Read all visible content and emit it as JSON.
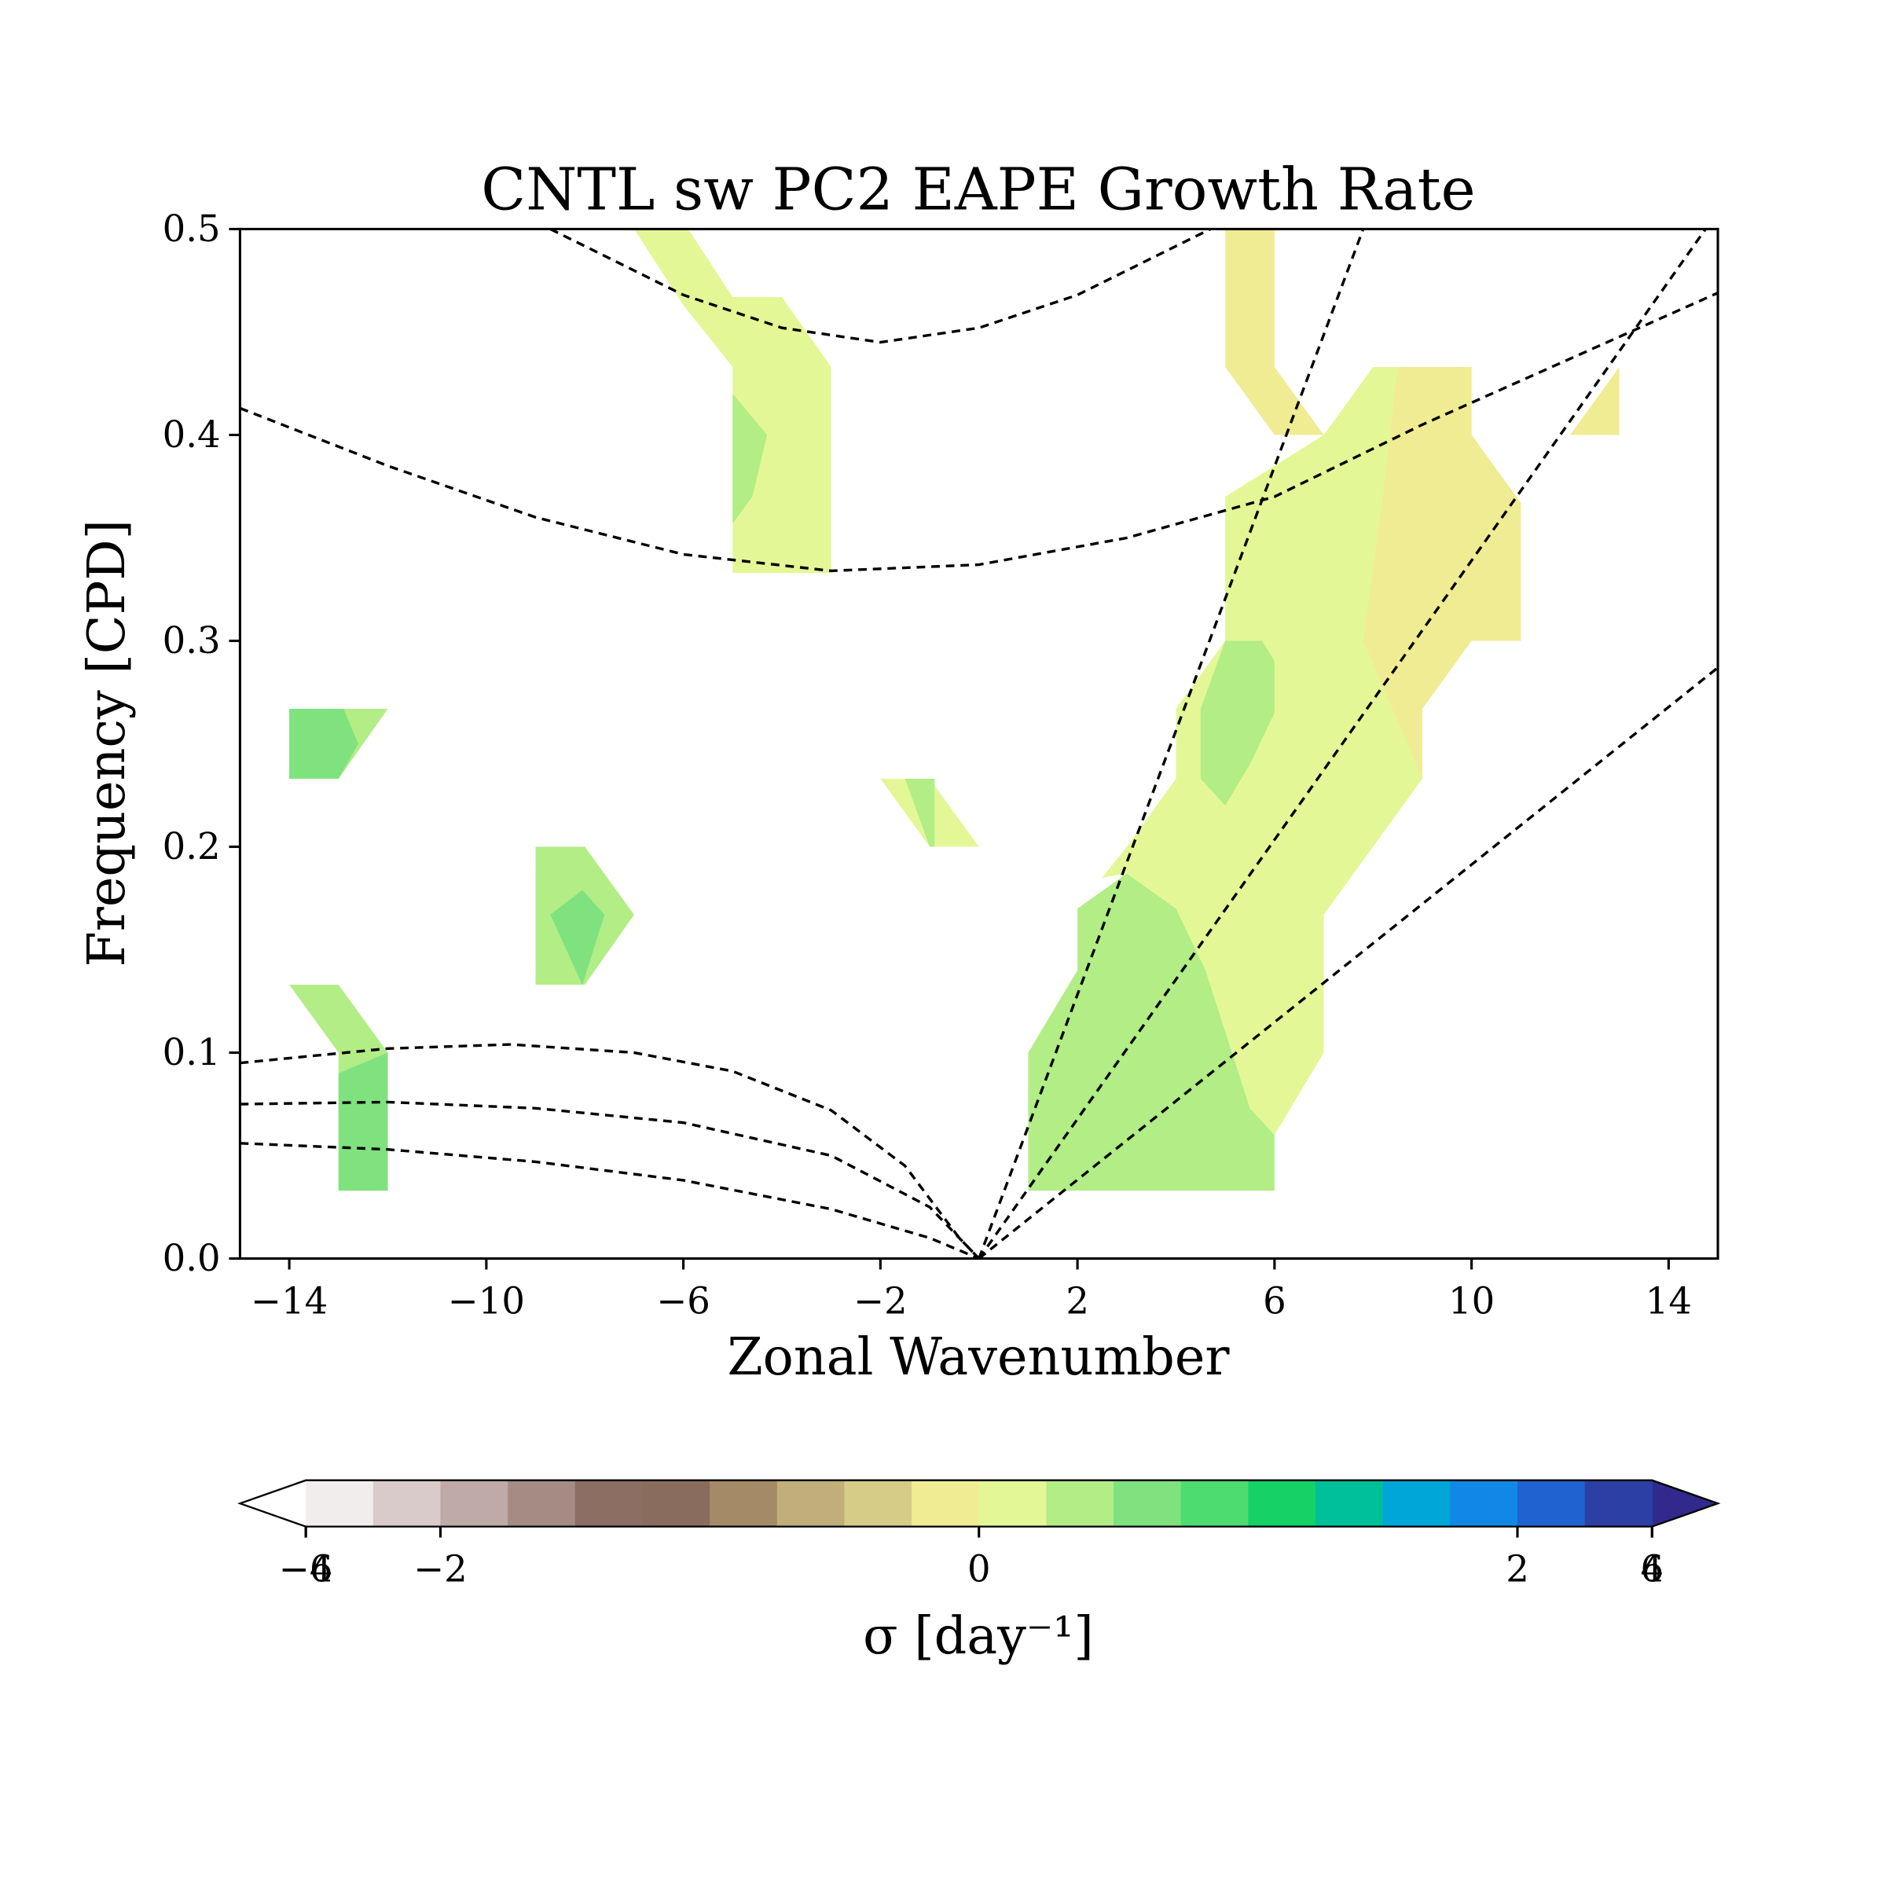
{
  "chart_data": {
    "type": "contour",
    "title": "CNTL sw PC2 EAPE Growth Rate",
    "xlabel": "Zonal Wavenumber",
    "ylabel": "Frequency [CPD]",
    "xlim": [
      -15,
      15
    ],
    "ylim": [
      0,
      0.5
    ],
    "xticks": [
      {
        "value": -14,
        "label": "−14"
      },
      {
        "value": -10,
        "label": "−10"
      },
      {
        "value": -6,
        "label": "−6"
      },
      {
        "value": -2,
        "label": "−2"
      },
      2,
      6,
      10,
      14
    ],
    "yticks": [
      {
        "value": 0,
        "label": "0.0"
      },
      0.1,
      0.2,
      0.3,
      0.4,
      0.5
    ],
    "regions": [
      {
        "level": 0,
        "points": [
          [
            -7,
            0.5
          ],
          [
            -5.9,
            0.5
          ],
          [
            -5,
            0.467
          ],
          [
            -4,
            0.467
          ],
          [
            -3,
            0.433
          ],
          [
            -3,
            0.333
          ],
          [
            -5,
            0.333
          ],
          [
            -5,
            0.433
          ],
          [
            -6,
            0.463
          ]
        ]
      },
      {
        "level": 0.1,
        "points": [
          [
            -5,
            0.42
          ],
          [
            -4.3,
            0.4
          ],
          [
            -4.6,
            0.37
          ],
          [
            -5,
            0.357
          ]
        ]
      },
      {
        "level": 0,
        "points": [
          [
            5,
            0.37
          ],
          [
            7,
            0.4
          ],
          [
            8,
            0.433
          ],
          [
            10,
            0.433
          ],
          [
            10,
            0.4
          ],
          [
            11,
            0.367
          ],
          [
            11,
            0.3
          ],
          [
            10,
            0.3
          ],
          [
            9,
            0.267
          ],
          [
            9,
            0.233
          ],
          [
            7,
            0.167
          ],
          [
            7,
            0.1
          ],
          [
            6,
            0.06
          ],
          [
            5.5,
            0.073
          ],
          [
            4.6,
            0.14
          ],
          [
            4,
            0.17
          ],
          [
            3,
            0.187
          ],
          [
            2.5,
            0.185
          ],
          [
            3,
            0.2
          ],
          [
            4,
            0.233
          ],
          [
            4,
            0.267
          ],
          [
            5,
            0.3
          ]
        ]
      },
      {
        "level": -0.1,
        "points": [
          [
            5,
            0.5
          ],
          [
            6,
            0.5
          ],
          [
            6,
            0.433
          ],
          [
            7,
            0.4
          ],
          [
            6,
            0.4
          ],
          [
            5,
            0.433
          ]
        ]
      },
      {
        "level": -0.1,
        "points": [
          [
            8.5,
            0.433
          ],
          [
            10,
            0.433
          ],
          [
            10,
            0.4
          ],
          [
            11,
            0.367
          ],
          [
            11,
            0.3
          ],
          [
            10,
            0.3
          ],
          [
            9,
            0.267
          ],
          [
            9,
            0.233
          ],
          [
            7.8,
            0.3
          ],
          [
            8.2,
            0.37
          ]
        ]
      },
      {
        "level": 0.1,
        "points": [
          [
            1,
            0.033
          ],
          [
            6,
            0.033
          ],
          [
            6,
            0.06
          ],
          [
            5.5,
            0.073
          ],
          [
            4.6,
            0.14
          ],
          [
            4,
            0.17
          ],
          [
            3,
            0.187
          ],
          [
            2,
            0.17
          ],
          [
            2,
            0.14
          ],
          [
            1,
            0.1
          ]
        ]
      },
      {
        "level": 0.1,
        "points": [
          [
            4.5,
            0.267
          ],
          [
            5,
            0.3
          ],
          [
            5.75,
            0.3
          ],
          [
            6,
            0.29
          ],
          [
            6,
            0.265
          ],
          [
            5.5,
            0.24
          ],
          [
            5,
            0.22
          ],
          [
            4.5,
            0.233
          ]
        ]
      },
      {
        "level": -0.1,
        "points": [
          [
            12,
            0.4
          ],
          [
            13,
            0.433
          ],
          [
            13,
            0.4
          ]
        ]
      },
      {
        "level": 0.1,
        "points": [
          [
            -14,
            0.267
          ],
          [
            -12,
            0.267
          ],
          [
            -13,
            0.233
          ],
          [
            -14,
            0.233
          ]
        ]
      },
      {
        "level": 0.25,
        "points": [
          [
            -14,
            0.267
          ],
          [
            -12.9,
            0.267
          ],
          [
            -12.6,
            0.25
          ],
          [
            -13,
            0.233
          ],
          [
            -14,
            0.233
          ]
        ]
      },
      {
        "level": 0.1,
        "points": [
          [
            -9,
            0.2
          ],
          [
            -8,
            0.2
          ],
          [
            -7,
            0.167
          ],
          [
            -8,
            0.133
          ],
          [
            -9,
            0.133
          ]
        ]
      },
      {
        "level": 0.25,
        "points": [
          [
            -8.7,
            0.167
          ],
          [
            -8.05,
            0.179
          ],
          [
            -7.6,
            0.167
          ],
          [
            -8.05,
            0.133
          ]
        ]
      },
      {
        "level": 0,
        "points": [
          [
            -2,
            0.233
          ],
          [
            -1,
            0.233
          ],
          [
            0,
            0.2
          ],
          [
            -1,
            0.2
          ]
        ]
      },
      {
        "level": 0.1,
        "points": [
          [
            -1.5,
            0.233
          ],
          [
            -0.9,
            0.233
          ],
          [
            -0.9,
            0.2
          ],
          [
            -1,
            0.2
          ]
        ]
      },
      {
        "level": 0.1,
        "points": [
          [
            -14,
            0.133
          ],
          [
            -13,
            0.133
          ],
          [
            -12,
            0.1
          ],
          [
            -12,
            0.033
          ],
          [
            -13,
            0.033
          ],
          [
            -13,
            0.1
          ]
        ]
      },
      {
        "level": 0.25,
        "points": [
          [
            -13,
            0.09
          ],
          [
            -12,
            0.1
          ],
          [
            -12,
            0.033
          ],
          [
            -13,
            0.033
          ]
        ]
      }
    ],
    "curves": [
      {
        "x": [
          0,
          7.8
        ],
        "y": [
          0,
          0.5
        ]
      },
      {
        "x": [
          0,
          14.75
        ],
        "y": [
          0,
          0.5
        ]
      },
      {
        "x": [
          0,
          15
        ],
        "y": [
          0,
          0.287
        ]
      },
      {
        "x": [
          -8.7,
          -6,
          -4,
          -2,
          0,
          2,
          4.7
        ],
        "y": [
          0.5,
          0.468,
          0.452,
          0.445,
          0.452,
          0.468,
          0.5
        ]
      },
      {
        "x": [
          -15,
          -12,
          -9,
          -6,
          -3,
          0,
          3,
          6,
          9,
          12,
          15
        ],
        "y": [
          0.413,
          0.385,
          0.36,
          0.342,
          0.334,
          0.337,
          0.35,
          0.37,
          0.405,
          0.437,
          0.469
        ]
      },
      {
        "x": [
          -15,
          -12,
          -9.5,
          -7,
          -5,
          -3,
          -1.5,
          -0.4,
          0
        ],
        "y": [
          0.095,
          0.102,
          0.104,
          0.1,
          0.091,
          0.072,
          0.045,
          0.01,
          0
        ]
      },
      {
        "x": [
          -15,
          -12,
          -9,
          -6,
          -3,
          -1,
          0
        ],
        "y": [
          0.075,
          0.076,
          0.073,
          0.066,
          0.05,
          0.025,
          0
        ]
      },
      {
        "x": [
          -15,
          -12,
          -9,
          -6,
          -3,
          -1,
          0
        ],
        "y": [
          0.056,
          0.053,
          0.047,
          0.038,
          0.024,
          0.01,
          0
        ]
      }
    ],
    "colorbar": {
      "label": "σ [day⁻¹]",
      "levels": [
        -4,
        -3,
        -2,
        -1.75,
        -1.5,
        -1.25,
        -1,
        -0.5,
        -0.25,
        -0.1,
        0,
        0.1,
        0.25,
        0.5,
        1,
        1.25,
        1.5,
        1.75,
        2,
        3,
        4
      ],
      "colors": [
        "#f1eded",
        "#d8cbca",
        "#bfaaa7",
        "#a58b84",
        "#8d6e63",
        "#8a6c5e",
        "#a48a66",
        "#c1ae7a",
        "#d6cc87",
        "#f0ec93",
        "#e4f797",
        "#b2ed86",
        "#7fe27f",
        "#4ddc70",
        "#14d265",
        "#00c09a",
        "#00a6d8",
        "#1187e6",
        "#2062cf",
        "#2c3fa4"
      ],
      "under": "#ffffff",
      "over": "#312a8c",
      "ticks": [
        {
          "value": -6,
          "label": "−6"
        },
        {
          "value": -4,
          "label": "−4"
        },
        {
          "value": -2,
          "label": "−2"
        },
        0,
        2,
        4,
        6
      ]
    }
  }
}
